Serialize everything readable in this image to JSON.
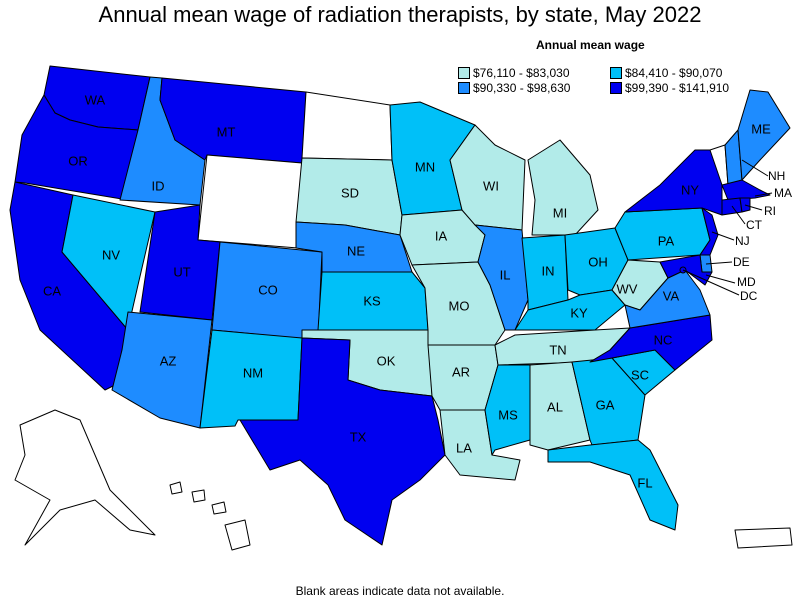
{
  "title": "Annual mean wage of radiation therapists, by state, May 2022",
  "legend": {
    "title": "Annual mean wage",
    "items": [
      {
        "label": "$76,110 - $83,030",
        "color": "#b2ebe9"
      },
      {
        "label": "$84,410 - $90,070",
        "color": "#00c0f8"
      },
      {
        "label": "$90,330 - $98,630",
        "color": "#1e8cff"
      },
      {
        "label": "$99,390 - $141,910",
        "color": "#0000f0"
      }
    ]
  },
  "states": {
    "WA": {
      "label": "WA",
      "class": 3
    },
    "OR": {
      "label": "OR",
      "class": 3
    },
    "CA": {
      "label": "CA",
      "class": 3
    },
    "ID": {
      "label": "ID",
      "class": 2
    },
    "NV": {
      "label": "NV",
      "class": 1
    },
    "MT": {
      "label": "MT",
      "class": 3
    },
    "WY": {
      "label": "",
      "class": null
    },
    "UT": {
      "label": "UT",
      "class": 3
    },
    "AZ": {
      "label": "AZ",
      "class": 2
    },
    "CO": {
      "label": "CO",
      "class": 2
    },
    "NM": {
      "label": "NM",
      "class": 1
    },
    "ND": {
      "label": "",
      "class": null
    },
    "SD": {
      "label": "SD",
      "class": 0
    },
    "NE": {
      "label": "NE",
      "class": 2
    },
    "KS": {
      "label": "KS",
      "class": 1
    },
    "OK": {
      "label": "OK",
      "class": 0
    },
    "TX": {
      "label": "TX",
      "class": 3
    },
    "MN": {
      "label": "MN",
      "class": 1
    },
    "IA": {
      "label": "IA",
      "class": 0
    },
    "MO": {
      "label": "MO",
      "class": 0
    },
    "AR": {
      "label": "AR",
      "class": 0
    },
    "LA": {
      "label": "LA",
      "class": 0
    },
    "WI": {
      "label": "WI",
      "class": 0
    },
    "IL": {
      "label": "IL",
      "class": 2
    },
    "MS": {
      "label": "MS",
      "class": 1
    },
    "MI": {
      "label": "MI",
      "class": 0
    },
    "IN": {
      "label": "IN",
      "class": 1
    },
    "KY": {
      "label": "KY",
      "class": 1
    },
    "TN": {
      "label": "TN",
      "class": 0
    },
    "AL": {
      "label": "AL",
      "class": 0
    },
    "OH": {
      "label": "OH",
      "class": 1
    },
    "WV": {
      "label": "WV",
      "class": 0
    },
    "GA": {
      "label": "GA",
      "class": 1
    },
    "FL": {
      "label": "FL",
      "class": 1
    },
    "SC": {
      "label": "SC",
      "class": 1
    },
    "NC": {
      "label": "NC",
      "class": 3
    },
    "VA": {
      "label": "VA",
      "class": 2
    },
    "PA": {
      "label": "PA",
      "class": 1
    },
    "NY": {
      "label": "NY",
      "class": 3
    },
    "VT": {
      "label": "",
      "class": null
    },
    "NH": {
      "label": "NH",
      "class": 2
    },
    "ME": {
      "label": "ME",
      "class": 2
    },
    "MA": {
      "label": "MA",
      "class": 3
    },
    "RI": {
      "label": "RI",
      "class": 3
    },
    "CT": {
      "label": "CT",
      "class": 3
    },
    "NJ": {
      "label": "NJ",
      "class": 3
    },
    "DE": {
      "label": "DE",
      "class": 2
    },
    "MD": {
      "label": "MD",
      "class": 3
    },
    "DC": {
      "label": "DC",
      "class": 3
    },
    "AK": {
      "label": "",
      "class": null
    },
    "HI": {
      "label": "",
      "class": null
    },
    "PR": {
      "label": "",
      "class": null
    }
  },
  "footnote": "Blank areas indicate data not available."
}
